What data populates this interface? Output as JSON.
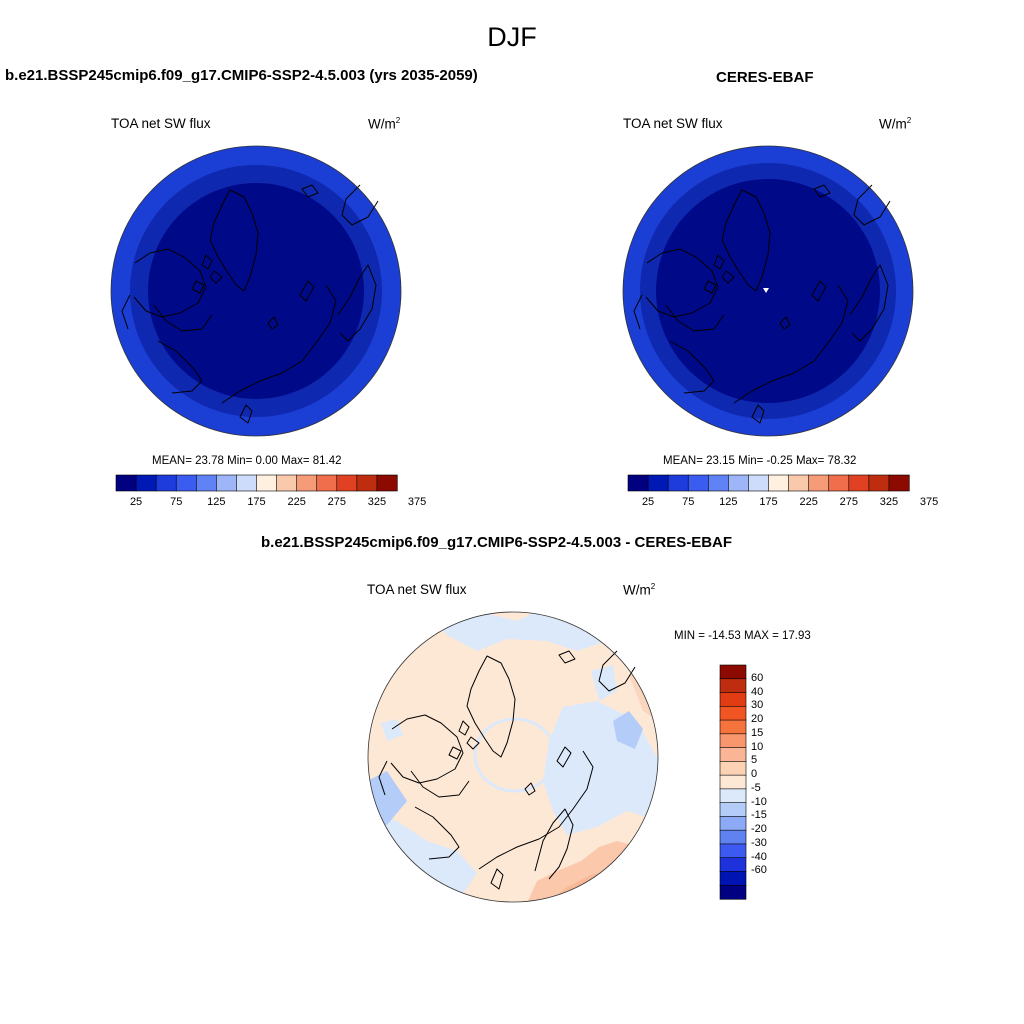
{
  "figure": {
    "title": "DJF",
    "panels": [
      {
        "title": "b.e21.BSSP245cmip6.f09_g17.CMIP6-SSP2-4.5.003 (yrs 2035-2059)",
        "variable": "TOA net SW flux",
        "units_base": "W/m",
        "units_exp": "2",
        "stats_text": "MEAN=  23.78  Min=   0.00  Max=  81.42"
      },
      {
        "title": "CERES-EBAF",
        "variable": "TOA net SW flux",
        "units_base": "W/m",
        "units_exp": "2",
        "stats_text": "MEAN=  23.15  Min=  -0.25  Max=  78.32"
      },
      {
        "title": "b.e21.BSSP245cmip6.f09_g17.CMIP6-SSP2-4.5.003 - CERES-EBAF",
        "variable": "TOA net SW flux",
        "units_base": "W/m",
        "units_exp": "2",
        "stats_text": "MIN = -14.53 MAX =  17.93"
      }
    ]
  },
  "chart_data": [
    {
      "type": "heatmap",
      "projection": "north-polar-stereographic",
      "title": "b.e21.BSSP245cmip6.f09_g17.CMIP6-SSP2-4.5.003 (yrs 2035-2059)",
      "variable": "TOA net SW flux",
      "units": "W/m2",
      "mean": 23.78,
      "min": 0.0,
      "max": 81.42,
      "colorbar": {
        "orientation": "horizontal",
        "tick_labels": [
          "25",
          "75",
          "125",
          "175",
          "225",
          "275",
          "325",
          "375"
        ],
        "colors": [
          "#000080",
          "#0019b4",
          "#1e3cdc",
          "#3b5cf0",
          "#5f82f5",
          "#9eb6f8",
          "#cddcfa",
          "#fff0e0",
          "#fac8aa",
          "#f59b78",
          "#f06e4b",
          "#e14123",
          "#be2d0f",
          "#8c0a00"
        ]
      },
      "rings": [
        {
          "outer_radius_fraction": 1.0,
          "approx_value": 45,
          "color": "#1b3ed4"
        },
        {
          "outer_radius_fraction": 0.87,
          "approx_value": 30,
          "color": "#0f28b0"
        },
        {
          "outer_radius_fraction": 0.74,
          "approx_value": 10,
          "color": "#000a88"
        }
      ]
    },
    {
      "type": "heatmap",
      "projection": "north-polar-stereographic",
      "title": "CERES-EBAF",
      "variable": "TOA net SW flux",
      "units": "W/m2",
      "mean": 23.15,
      "min": -0.25,
      "max": 78.32,
      "colorbar": {
        "orientation": "horizontal",
        "tick_labels": [
          "25",
          "75",
          "125",
          "175",
          "225",
          "275",
          "325",
          "375"
        ],
        "colors": [
          "#000080",
          "#0019b4",
          "#1e3cdc",
          "#3b5cf0",
          "#5f82f5",
          "#9eb6f8",
          "#cddcfa",
          "#fff0e0",
          "#fac8aa",
          "#f59b78",
          "#f06e4b",
          "#e14123",
          "#be2d0f",
          "#8c0a00"
        ]
      },
      "rings": [
        {
          "outer_radius_fraction": 1.0,
          "approx_value": 45,
          "color": "#1b3ed4"
        },
        {
          "outer_radius_fraction": 0.87,
          "approx_value": 30,
          "color": "#0f28b0"
        },
        {
          "outer_radius_fraction": 0.74,
          "approx_value": 10,
          "color": "#000a88"
        }
      ]
    },
    {
      "type": "heatmap",
      "projection": "north-polar-stereographic",
      "title": "b.e21.BSSP245cmip6.f09_g17.CMIP6-SSP2-4.5.003 - CERES-EBAF",
      "variable": "TOA net SW flux",
      "units": "W/m2",
      "min": -14.53,
      "max": 17.93,
      "colorbar": {
        "orientation": "vertical",
        "tick_labels": [
          "60",
          "40",
          "30",
          "20",
          "15",
          "10",
          "5",
          "0",
          "-5",
          "-10",
          "-15",
          "-20",
          "-30",
          "-40",
          "-60"
        ],
        "colors": [
          "#8c0a00",
          "#be2d0f",
          "#e13c14",
          "#f05523",
          "#f5733c",
          "#f8966e",
          "#fab496",
          "#fcd2b4",
          "#fde8d6",
          "#dce9fa",
          "#b4ccf8",
          "#8caaf5",
          "#5f82f0",
          "#3c5af0",
          "#1e32dc",
          "#0014b4",
          "#000080"
        ]
      },
      "dominant_value_range": [
        0,
        5
      ]
    }
  ]
}
